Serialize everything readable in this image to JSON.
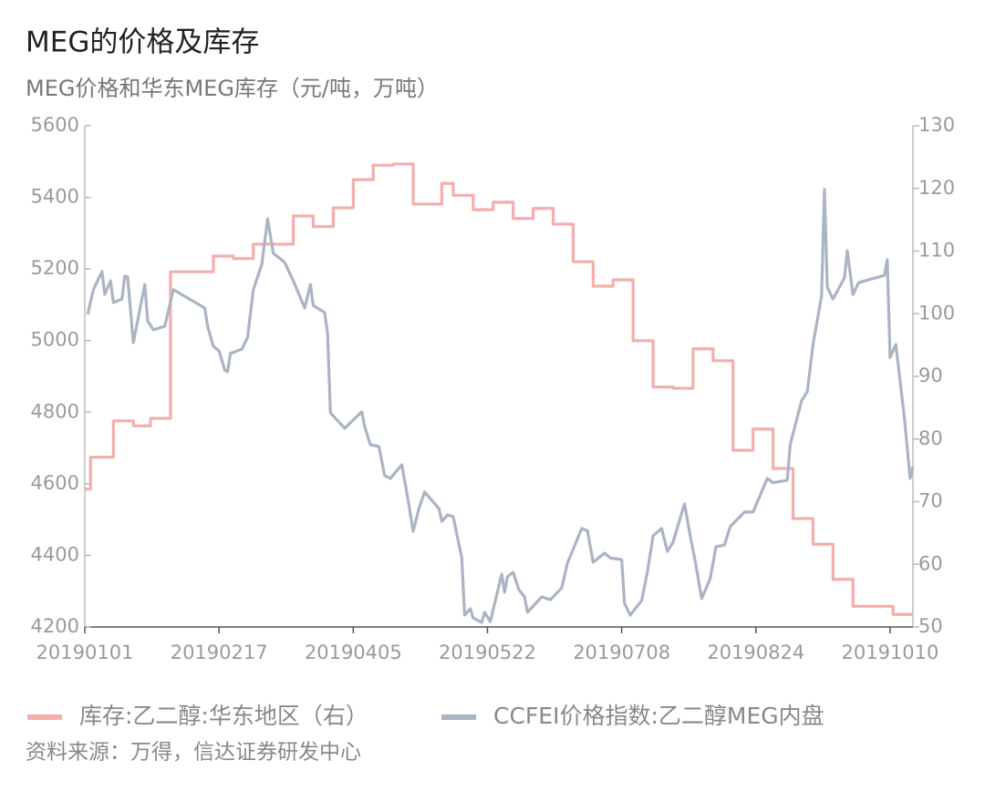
{
  "chart_data": {
    "type": "line",
    "title": "MEG的价格及库存",
    "subtitle": "MEG价格和华东MEG库存（元/吨，万吨）",
    "source": "资料来源：万得，信达证券研发中心",
    "xlim": [
      "20190101",
      "20191018"
    ],
    "xticks": [
      "20190101",
      "20190217",
      "20190405",
      "20190522",
      "20190708",
      "20190824",
      "20191010"
    ],
    "ylim": [
      4200,
      5600
    ],
    "yticks": [
      4200,
      4400,
      4600,
      4800,
      5000,
      5200,
      5400,
      5600
    ],
    "y2lim": [
      50,
      130
    ],
    "y2ticks": [
      50,
      60,
      70,
      80,
      90,
      100,
      110,
      120,
      130
    ],
    "series": [
      {
        "name": "库存:乙二醇:华东地区（右）",
        "color": "#f4aeab",
        "axis": "y2",
        "step": true,
        "x": [
          "20190101",
          "20190103",
          "20190111",
          "20190118",
          "20190124",
          "20190131",
          "20190215",
          "20190222",
          "20190301",
          "20190315",
          "20190322",
          "20190329",
          "20190405",
          "20190412",
          "20190419",
          "20190426",
          "20190506",
          "20190510",
          "20190517",
          "20190524",
          "20190531",
          "20190607",
          "20190614",
          "20190621",
          "20190628",
          "20190705",
          "20190712",
          "20190719",
          "20190726",
          "20190802",
          "20190809",
          "20190816",
          "20190823",
          "20190830",
          "20190906",
          "20190913",
          "20190920",
          "20190927",
          "20191011",
          "20191018"
        ],
        "values": [
          72.0,
          77.1,
          82.9,
          82.1,
          83.3,
          106.7,
          109.2,
          108.8,
          111.1,
          115.6,
          113.9,
          116.9,
          121.4,
          123.7,
          123.9,
          117.5,
          120.8,
          118.9,
          116.6,
          117.8,
          115.2,
          116.8,
          114.3,
          108.3,
          104.4,
          105.4,
          95.7,
          88.3,
          88.1,
          94.4,
          92.5,
          78.2,
          81.6,
          75.3,
          67.3,
          63.2,
          57.6,
          53.3,
          52.0,
          52.0
        ]
      },
      {
        "name": "CCFEI价格指数:乙二醇MEG内盘",
        "color": "#aab4c4",
        "x": [
          "20190102",
          "20190104",
          "20190107",
          "20190108",
          "20190110",
          "20190111",
          "20190114",
          "20190115",
          "20190116",
          "20190118",
          "20190122",
          "20190123",
          "20190125",
          "20190129",
          "20190201",
          "20190212",
          "20190213",
          "20190215",
          "20190217",
          "20190219",
          "20190220",
          "20190221",
          "20190225",
          "20190227",
          "20190301",
          "20190304",
          "20190306",
          "20190308",
          "20190312",
          "20190315",
          "20190319",
          "20190321",
          "20190322",
          "20190326",
          "20190327",
          "20190328",
          "20190402",
          "20190408",
          "20190409",
          "20190411",
          "20190414",
          "20190416",
          "20190418",
          "20190422",
          "20190424",
          "20190426",
          "20190428",
          "20190430",
          "20190505",
          "20190506",
          "20190508",
          "20190510",
          "20190513",
          "20190514",
          "20190516",
          "20190517",
          "20190520",
          "20190521",
          "20190523",
          "20190527",
          "20190528",
          "20190529",
          "20190531",
          "20190602",
          "20190604",
          "20190605",
          "20190610",
          "20190613",
          "20190617",
          "20190619",
          "20190624",
          "20190626",
          "20190628",
          "20190702",
          "20190704",
          "20190708",
          "20190709",
          "20190711",
          "20190715",
          "20190717",
          "20190719",
          "20190722",
          "20190724",
          "20190726",
          "20190730",
          "20190801",
          "20190803",
          "20190805",
          "20190808",
          "20190810",
          "20190813",
          "20190815",
          "20190820",
          "20190823",
          "20190828",
          "20190830",
          "20190904",
          "20190905",
          "20190909",
          "20190911",
          "20190913",
          "20190916",
          "20190917",
          "20190918",
          "20190920",
          "20190924",
          "20190925",
          "20190927",
          "20190929",
          "20191008",
          "20191009",
          "20191010",
          "20191012",
          "20191015",
          "20191017",
          "20191018"
        ],
        "values": [
          5073,
          5142,
          5193,
          5129,
          5167,
          5106,
          5116,
          5180,
          5177,
          4994,
          5157,
          5055,
          5030,
          5040,
          5142,
          5091,
          5040,
          4984,
          4971,
          4918,
          4913,
          4964,
          4976,
          5009,
          5142,
          5213,
          5340,
          5244,
          5218,
          5167,
          5091,
          5157,
          5098,
          5078,
          5022,
          4798,
          4755,
          4801,
          4760,
          4709,
          4704,
          4623,
          4615,
          4653,
          4564,
          4467,
          4531,
          4577,
          4531,
          4495,
          4513,
          4508,
          4393,
          4233,
          4251,
          4225,
          4213,
          4241,
          4215,
          4348,
          4297,
          4340,
          4353,
          4304,
          4284,
          4241,
          4284,
          4276,
          4309,
          4378,
          4475,
          4469,
          4381,
          4406,
          4393,
          4388,
          4266,
          4233,
          4274,
          4353,
          4455,
          4475,
          4411,
          4437,
          4544,
          4455,
          4373,
          4279,
          4335,
          4424,
          4429,
          4480,
          4521,
          4521,
          4615,
          4603,
          4610,
          4709,
          4832,
          4857,
          4989,
          5124,
          5422,
          5149,
          5116,
          5175,
          5251,
          5129,
          5162,
          5182,
          5226,
          4953,
          4989,
          4785,
          4615,
          4648
        ]
      }
    ]
  }
}
